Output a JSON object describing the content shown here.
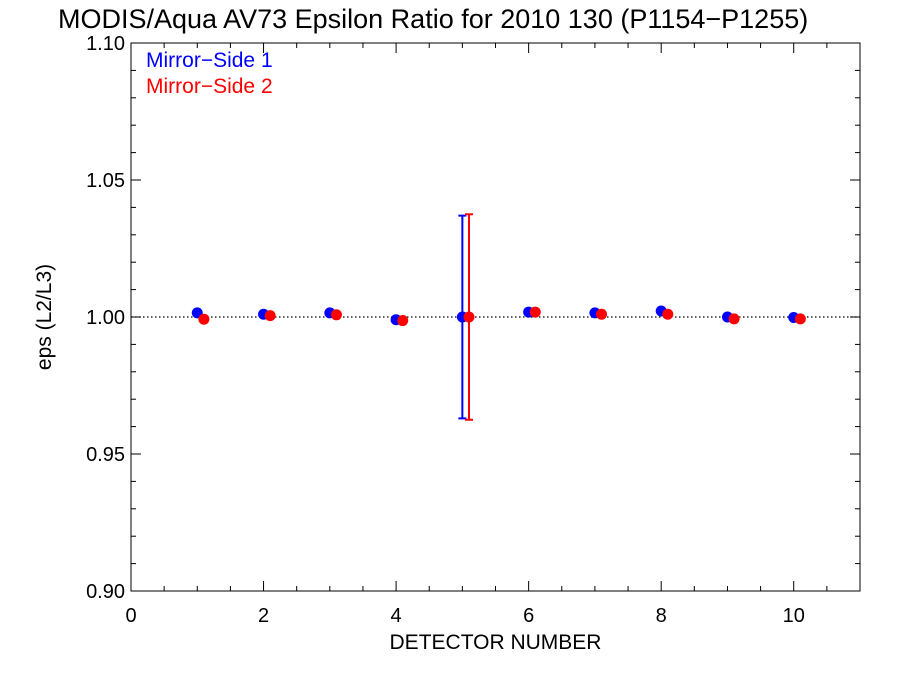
{
  "chart_data": {
    "type": "scatter",
    "title": "MODIS/Aqua AV73 Epsilon Ratio for 2010 130 (P1154−P1255)",
    "xlabel": "DETECTOR NUMBER",
    "ylabel": "eps (L2/L3)",
    "xlim": [
      0,
      11
    ],
    "ylim": [
      0.9,
      1.1
    ],
    "x_ticks": [
      0,
      2,
      4,
      6,
      8,
      10
    ],
    "x_tick_labels": [
      "0",
      "2",
      "4",
      "6",
      "8",
      "10"
    ],
    "y_ticks": [
      0.9,
      0.95,
      1.0,
      1.05,
      1.1
    ],
    "y_tick_labels": [
      "0.90",
      "0.95",
      "1.00",
      "1.05",
      "1.10"
    ],
    "reference_line": 1.0,
    "grid": false,
    "legend_position": "top-left",
    "series": [
      {
        "name": "Mirror−Side 1",
        "color": "#0000ff",
        "x": [
          1,
          2,
          3,
          4,
          5,
          6,
          7,
          8,
          9,
          10
        ],
        "y": [
          1.0015,
          1.001,
          1.0015,
          0.999,
          1.0,
          1.0018,
          1.0015,
          1.0022,
          1.0,
          0.9998
        ],
        "error_bars": [
          {
            "x": 5,
            "low": 0.963,
            "high": 1.037
          }
        ]
      },
      {
        "name": "Mirror−Side 2",
        "color": "#ff0000",
        "x": [
          1.1,
          2.1,
          3.1,
          4.1,
          5.1,
          6.1,
          7.1,
          8.1,
          9.1,
          10.1
        ],
        "y": [
          0.9992,
          1.0005,
          1.0008,
          0.9987,
          1.0,
          1.0018,
          1.001,
          1.001,
          0.9993,
          0.9993
        ],
        "error_bars": [
          {
            "x": 5.1,
            "low": 0.9625,
            "high": 1.0375
          }
        ]
      }
    ]
  }
}
